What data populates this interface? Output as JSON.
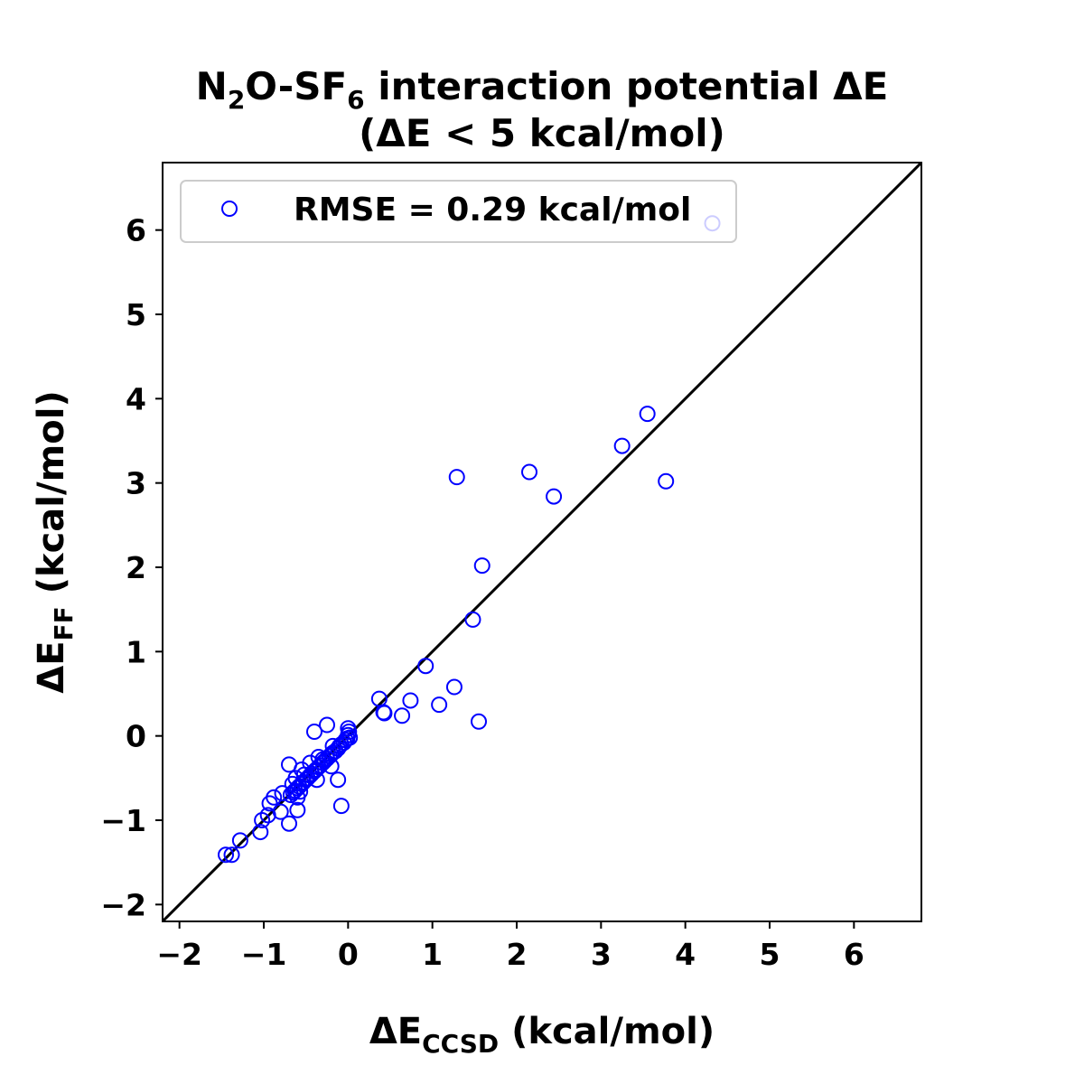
{
  "chart_data": {
    "type": "scatter",
    "title": {
      "line1_parts": [
        "N",
        "2",
        "O-SF",
        "6",
        " interaction potential ΔE"
      ],
      "line2": "(ΔE < 5 kcal/mol)"
    },
    "xlabel": {
      "main": "ΔE",
      "sub": "CCSD",
      "unit": " (kcal/mol)"
    },
    "ylabel": {
      "main": "ΔE",
      "sub": "FF",
      "unit": " (kcal/mol)"
    },
    "xlim": [
      -2.2,
      6.8
    ],
    "ylim": [
      -2.2,
      6.8
    ],
    "xticks": [
      -2,
      -1,
      0,
      1,
      2,
      3,
      4,
      5,
      6
    ],
    "yticks": [
      -2,
      -1,
      0,
      1,
      2,
      3,
      4,
      5,
      6
    ],
    "xtick_labels": [
      "−2",
      "−1",
      "0",
      "1",
      "2",
      "3",
      "4",
      "5",
      "6"
    ],
    "ytick_labels": [
      "−2",
      "−1",
      "0",
      "1",
      "2",
      "3",
      "4",
      "5",
      "6"
    ],
    "grid": false,
    "reference_line": "y = x",
    "legend_position": "upper-left",
    "colors": {
      "series": "#0000ff",
      "reference_line": "#000000"
    },
    "series": [
      {
        "name": "RMSE = 0.29 kcal/mol",
        "marker": "open-circle",
        "points": [
          [
            4.32,
            6.08
          ],
          [
            3.55,
            3.82
          ],
          [
            3.25,
            3.44
          ],
          [
            3.77,
            3.02
          ],
          [
            2.15,
            3.13
          ],
          [
            2.44,
            2.84
          ],
          [
            1.29,
            3.07
          ],
          [
            1.59,
            2.02
          ],
          [
            1.48,
            1.38
          ],
          [
            0.92,
            0.83
          ],
          [
            1.26,
            0.58
          ],
          [
            1.55,
            0.17
          ],
          [
            1.08,
            0.37
          ],
          [
            0.74,
            0.42
          ],
          [
            0.64,
            0.24
          ],
          [
            0.43,
            0.27
          ],
          [
            0.37,
            0.44
          ],
          [
            0.42,
            0.28
          ],
          [
            0.0,
            0.09
          ],
          [
            0.01,
            0.05
          ],
          [
            0.0,
            0.01
          ],
          [
            -0.01,
            -0.03
          ],
          [
            0.02,
            -0.02
          ],
          [
            -0.03,
            -0.05
          ],
          [
            -0.05,
            -0.08
          ],
          [
            -0.08,
            -0.1
          ],
          [
            -0.1,
            -0.12
          ],
          [
            -0.12,
            -0.15
          ],
          [
            -0.15,
            -0.18
          ],
          [
            -0.18,
            -0.2
          ],
          [
            -0.2,
            -0.22
          ],
          [
            -0.22,
            -0.24
          ],
          [
            -0.25,
            -0.27
          ],
          [
            -0.28,
            -0.3
          ],
          [
            -0.3,
            -0.32
          ],
          [
            -0.33,
            -0.35
          ],
          [
            -0.35,
            -0.37
          ],
          [
            -0.38,
            -0.4
          ],
          [
            -0.4,
            -0.42
          ],
          [
            -0.43,
            -0.45
          ],
          [
            -0.45,
            -0.47
          ],
          [
            -0.48,
            -0.5
          ],
          [
            -0.5,
            -0.52
          ],
          [
            -0.53,
            -0.55
          ],
          [
            -0.55,
            -0.57
          ],
          [
            -0.58,
            -0.6
          ],
          [
            -0.6,
            -0.62
          ],
          [
            -0.63,
            -0.65
          ],
          [
            -0.65,
            -0.67
          ],
          [
            -0.68,
            -0.7
          ],
          [
            -0.25,
            0.13
          ],
          [
            -0.4,
            0.05
          ],
          [
            -0.12,
            -0.52
          ],
          [
            -0.08,
            -0.83
          ],
          [
            -0.2,
            -0.36
          ],
          [
            -0.37,
            -0.52
          ],
          [
            -0.45,
            -0.32
          ],
          [
            -0.55,
            -0.4
          ],
          [
            -0.62,
            -0.5
          ],
          [
            -0.7,
            -0.34
          ],
          [
            -0.6,
            -0.73
          ],
          [
            -0.6,
            -0.88
          ],
          [
            -0.7,
            -1.04
          ],
          [
            -0.78,
            -0.68
          ],
          [
            -0.8,
            -0.9
          ],
          [
            -0.88,
            -0.73
          ],
          [
            -0.93,
            -0.8
          ],
          [
            -0.95,
            -0.94
          ],
          [
            -1.02,
            -1.0
          ],
          [
            -1.04,
            -1.14
          ],
          [
            -1.28,
            -1.24
          ],
          [
            -1.38,
            -1.41
          ],
          [
            -1.45,
            -1.41
          ],
          [
            -0.3,
            -0.28
          ],
          [
            -0.18,
            -0.12
          ],
          [
            -0.52,
            -0.46
          ],
          [
            -0.35,
            -0.25
          ],
          [
            -0.66,
            -0.57
          ],
          [
            -0.57,
            -0.66
          ]
        ]
      }
    ]
  }
}
